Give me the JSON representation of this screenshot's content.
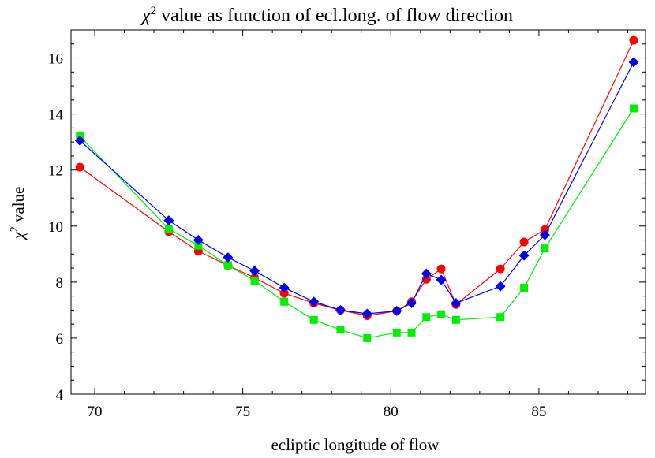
{
  "chart_data": {
    "type": "line",
    "title": "value as function of ecl.long. of flow direction",
    "title_symbol": "χ",
    "title_superscript": "2",
    "xlabel": "ecliptic longitude of flow",
    "ylabel": "value",
    "ylabel_symbol": "χ",
    "ylabel_superscript": "2",
    "xlim": [
      69.2,
      88.6
    ],
    "ylim": [
      4,
      17
    ],
    "xticks": [
      70,
      75,
      80,
      85
    ],
    "yticks": [
      4,
      6,
      8,
      10,
      12,
      14,
      16
    ],
    "grid": false,
    "legend": "none",
    "series": [
      {
        "color": "#ff0000",
        "marker": "circle",
        "x": [
          69.5,
          72.5,
          73.5,
          74.5,
          75.4,
          76.4,
          77.4,
          78.3,
          79.2,
          80.2,
          80.7,
          81.2,
          81.7,
          82.2,
          83.7,
          84.5,
          85.2,
          88.2
        ],
        "y": [
          12.1,
          9.8,
          9.1,
          8.6,
          8.15,
          7.6,
          7.25,
          7.0,
          6.8,
          6.97,
          7.3,
          8.1,
          8.47,
          7.2,
          8.47,
          9.43,
          9.87,
          16.63
        ]
      },
      {
        "color": "#00ee00",
        "marker": "square",
        "x": [
          69.5,
          72.5,
          73.5,
          74.5,
          75.4,
          76.4,
          77.4,
          78.3,
          79.2,
          80.2,
          80.7,
          81.2,
          81.7,
          82.2,
          83.7,
          84.5,
          85.2,
          88.2
        ],
        "y": [
          13.2,
          9.9,
          9.3,
          8.6,
          8.05,
          7.3,
          6.65,
          6.3,
          6.0,
          6.2,
          6.2,
          6.75,
          6.85,
          6.65,
          6.75,
          7.8,
          9.2,
          14.2
        ]
      },
      {
        "color": "#0000ee",
        "marker": "diamond",
        "x": [
          69.5,
          72.5,
          73.5,
          74.5,
          75.4,
          76.4,
          77.4,
          78.3,
          79.2,
          80.2,
          80.7,
          81.2,
          81.7,
          82.2,
          83.7,
          84.5,
          85.2,
          88.2
        ],
        "y": [
          13.05,
          10.2,
          9.5,
          8.88,
          8.4,
          7.8,
          7.3,
          7.0,
          6.87,
          6.97,
          7.25,
          8.3,
          8.08,
          7.25,
          7.85,
          8.95,
          9.68,
          15.85
        ]
      }
    ]
  }
}
